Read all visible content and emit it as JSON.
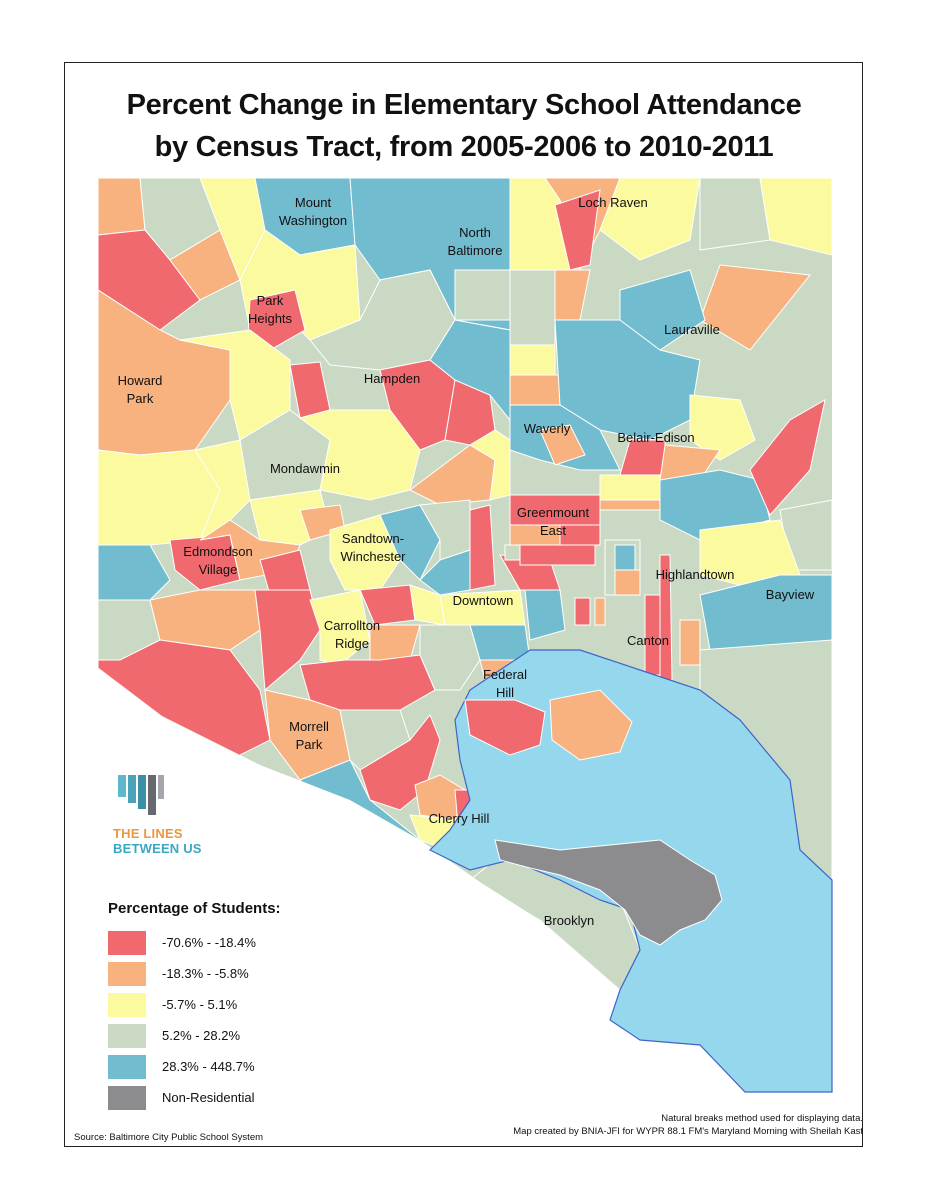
{
  "title": {
    "line1": "Percent Change in Elementary School Attendance",
    "line2": "by Census Tract, from 2005-2006 to 2010-2011"
  },
  "colors": {
    "cat1": "#f0696e",
    "cat2": "#f7b27f",
    "cat3": "#fbfa9e",
    "cat4": "#cad9c3",
    "cat5": "#72bccf",
    "cat6": "#8c8c8e",
    "water": "#95d8ee",
    "boundary": "#ffffff"
  },
  "neighborhoods": [
    {
      "lines": [
        "Mount",
        "Washington"
      ]
    },
    {
      "lines": [
        "North",
        "Baltimore"
      ]
    },
    {
      "lines": [
        "Loch Raven"
      ]
    },
    {
      "lines": [
        "Park",
        "Heights"
      ]
    },
    {
      "lines": [
        "Lauraville"
      ]
    },
    {
      "lines": [
        "Howard",
        "Park"
      ]
    },
    {
      "lines": [
        "Hampden"
      ]
    },
    {
      "lines": [
        "Waverly"
      ]
    },
    {
      "lines": [
        "Belair-Edison"
      ]
    },
    {
      "lines": [
        "Mondawmin"
      ]
    },
    {
      "lines": [
        "Greenmount",
        "East"
      ]
    },
    {
      "lines": [
        "Sandtown-",
        "Winchester"
      ]
    },
    {
      "lines": [
        "Edmondson",
        "Village"
      ]
    },
    {
      "lines": [
        "Highlandtown"
      ]
    },
    {
      "lines": [
        "Downtown"
      ]
    },
    {
      "lines": [
        "Bayview"
      ]
    },
    {
      "lines": [
        "Carrollton",
        "Ridge"
      ]
    },
    {
      "lines": [
        "Canton"
      ]
    },
    {
      "lines": [
        "Federal",
        "Hill"
      ]
    },
    {
      "lines": [
        "Morrell",
        "Park"
      ]
    },
    {
      "lines": [
        "Cherry Hill"
      ]
    },
    {
      "lines": [
        "Brooklyn"
      ]
    }
  ],
  "legend": {
    "title": "Percentage of Students:",
    "items": [
      {
        "label": "-70.6% - -18.4%",
        "color": "#f0696e"
      },
      {
        "label": "-18.3% - -5.8%",
        "color": "#f7b27f"
      },
      {
        "label": "-5.7% - 5.1%",
        "color": "#fbfa9e"
      },
      {
        "label": "5.2% - 28.2%",
        "color": "#cad9c3"
      },
      {
        "label": "28.3% - 448.7%",
        "color": "#72bccf"
      },
      {
        "label": "Non-Residential",
        "color": "#8c8c8e"
      }
    ]
  },
  "logo": {
    "line1": "THE LINES",
    "line2": "BETWEEN US"
  },
  "notes": {
    "line1": "Natural breaks method used for displaying data.",
    "line2": "Map created by BNIA-JFI for WYPR 88.1 FM's Maryland Morning with Sheilah Kast"
  },
  "source": "Source: Baltimore City Public School System"
}
